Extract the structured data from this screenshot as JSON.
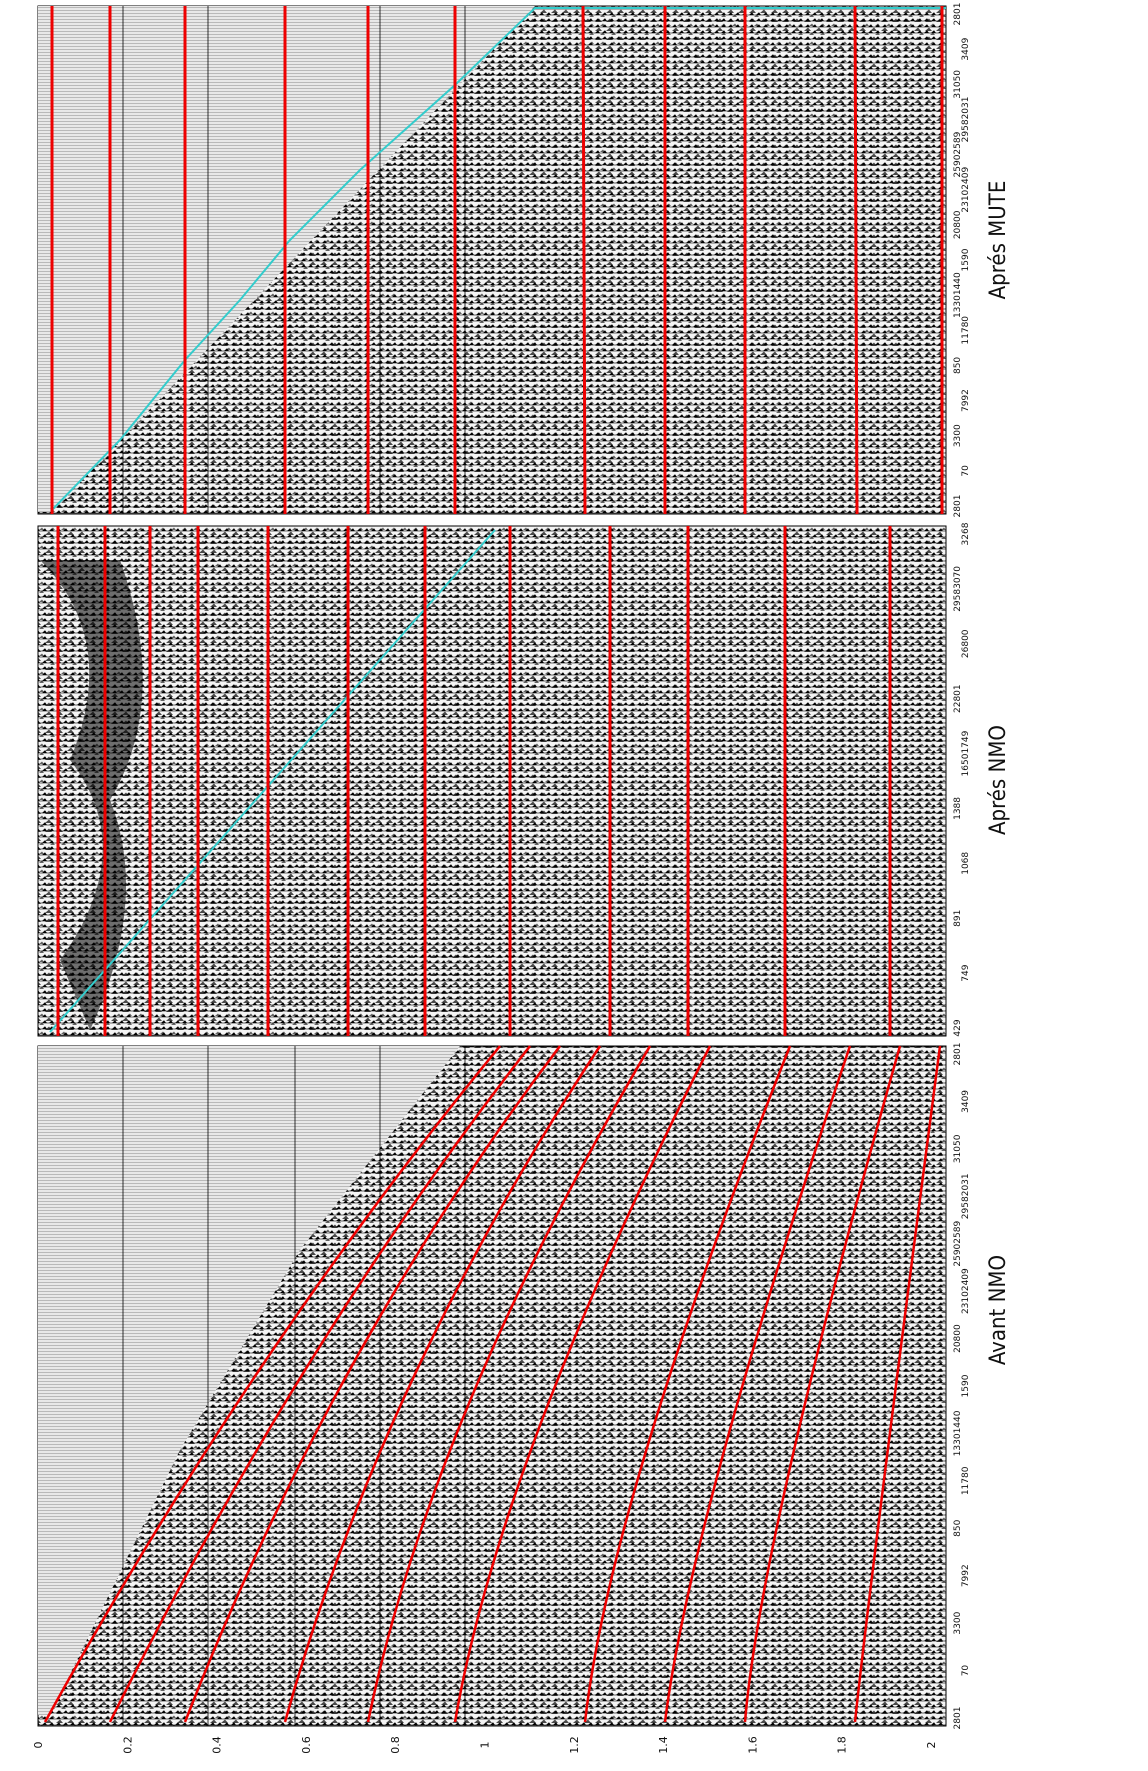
{
  "panels": [
    {
      "title": "Aprés MUTE",
      "offsets": [
        "2801",
        "70",
        "3300",
        "7992",
        "850",
        "11780",
        "13301440",
        "1590",
        "20800",
        "23102409",
        "25902589",
        "29582031",
        "31050",
        "3409",
        "2801"
      ]
    },
    {
      "title": "Aprés NMO",
      "offsets": [
        "429",
        "749",
        "891",
        "1068",
        "1388",
        "16501749",
        "22801",
        "26800",
        "29583070",
        "3268"
      ]
    },
    {
      "title": "Avant NMO",
      "offsets": [
        "2801",
        "70",
        "3300",
        "7992",
        "850",
        "11780",
        "13301440",
        "1590",
        "20800",
        "23102409",
        "25902589",
        "29582031",
        "31050",
        "3409",
        "2801"
      ]
    }
  ],
  "time_axis": {
    "labels": [
      "0",
      "0.2",
      "0.4",
      "0.6",
      "0.8",
      "1",
      "1.2",
      "1.4",
      "1.6",
      "1.8",
      "2"
    ]
  }
}
